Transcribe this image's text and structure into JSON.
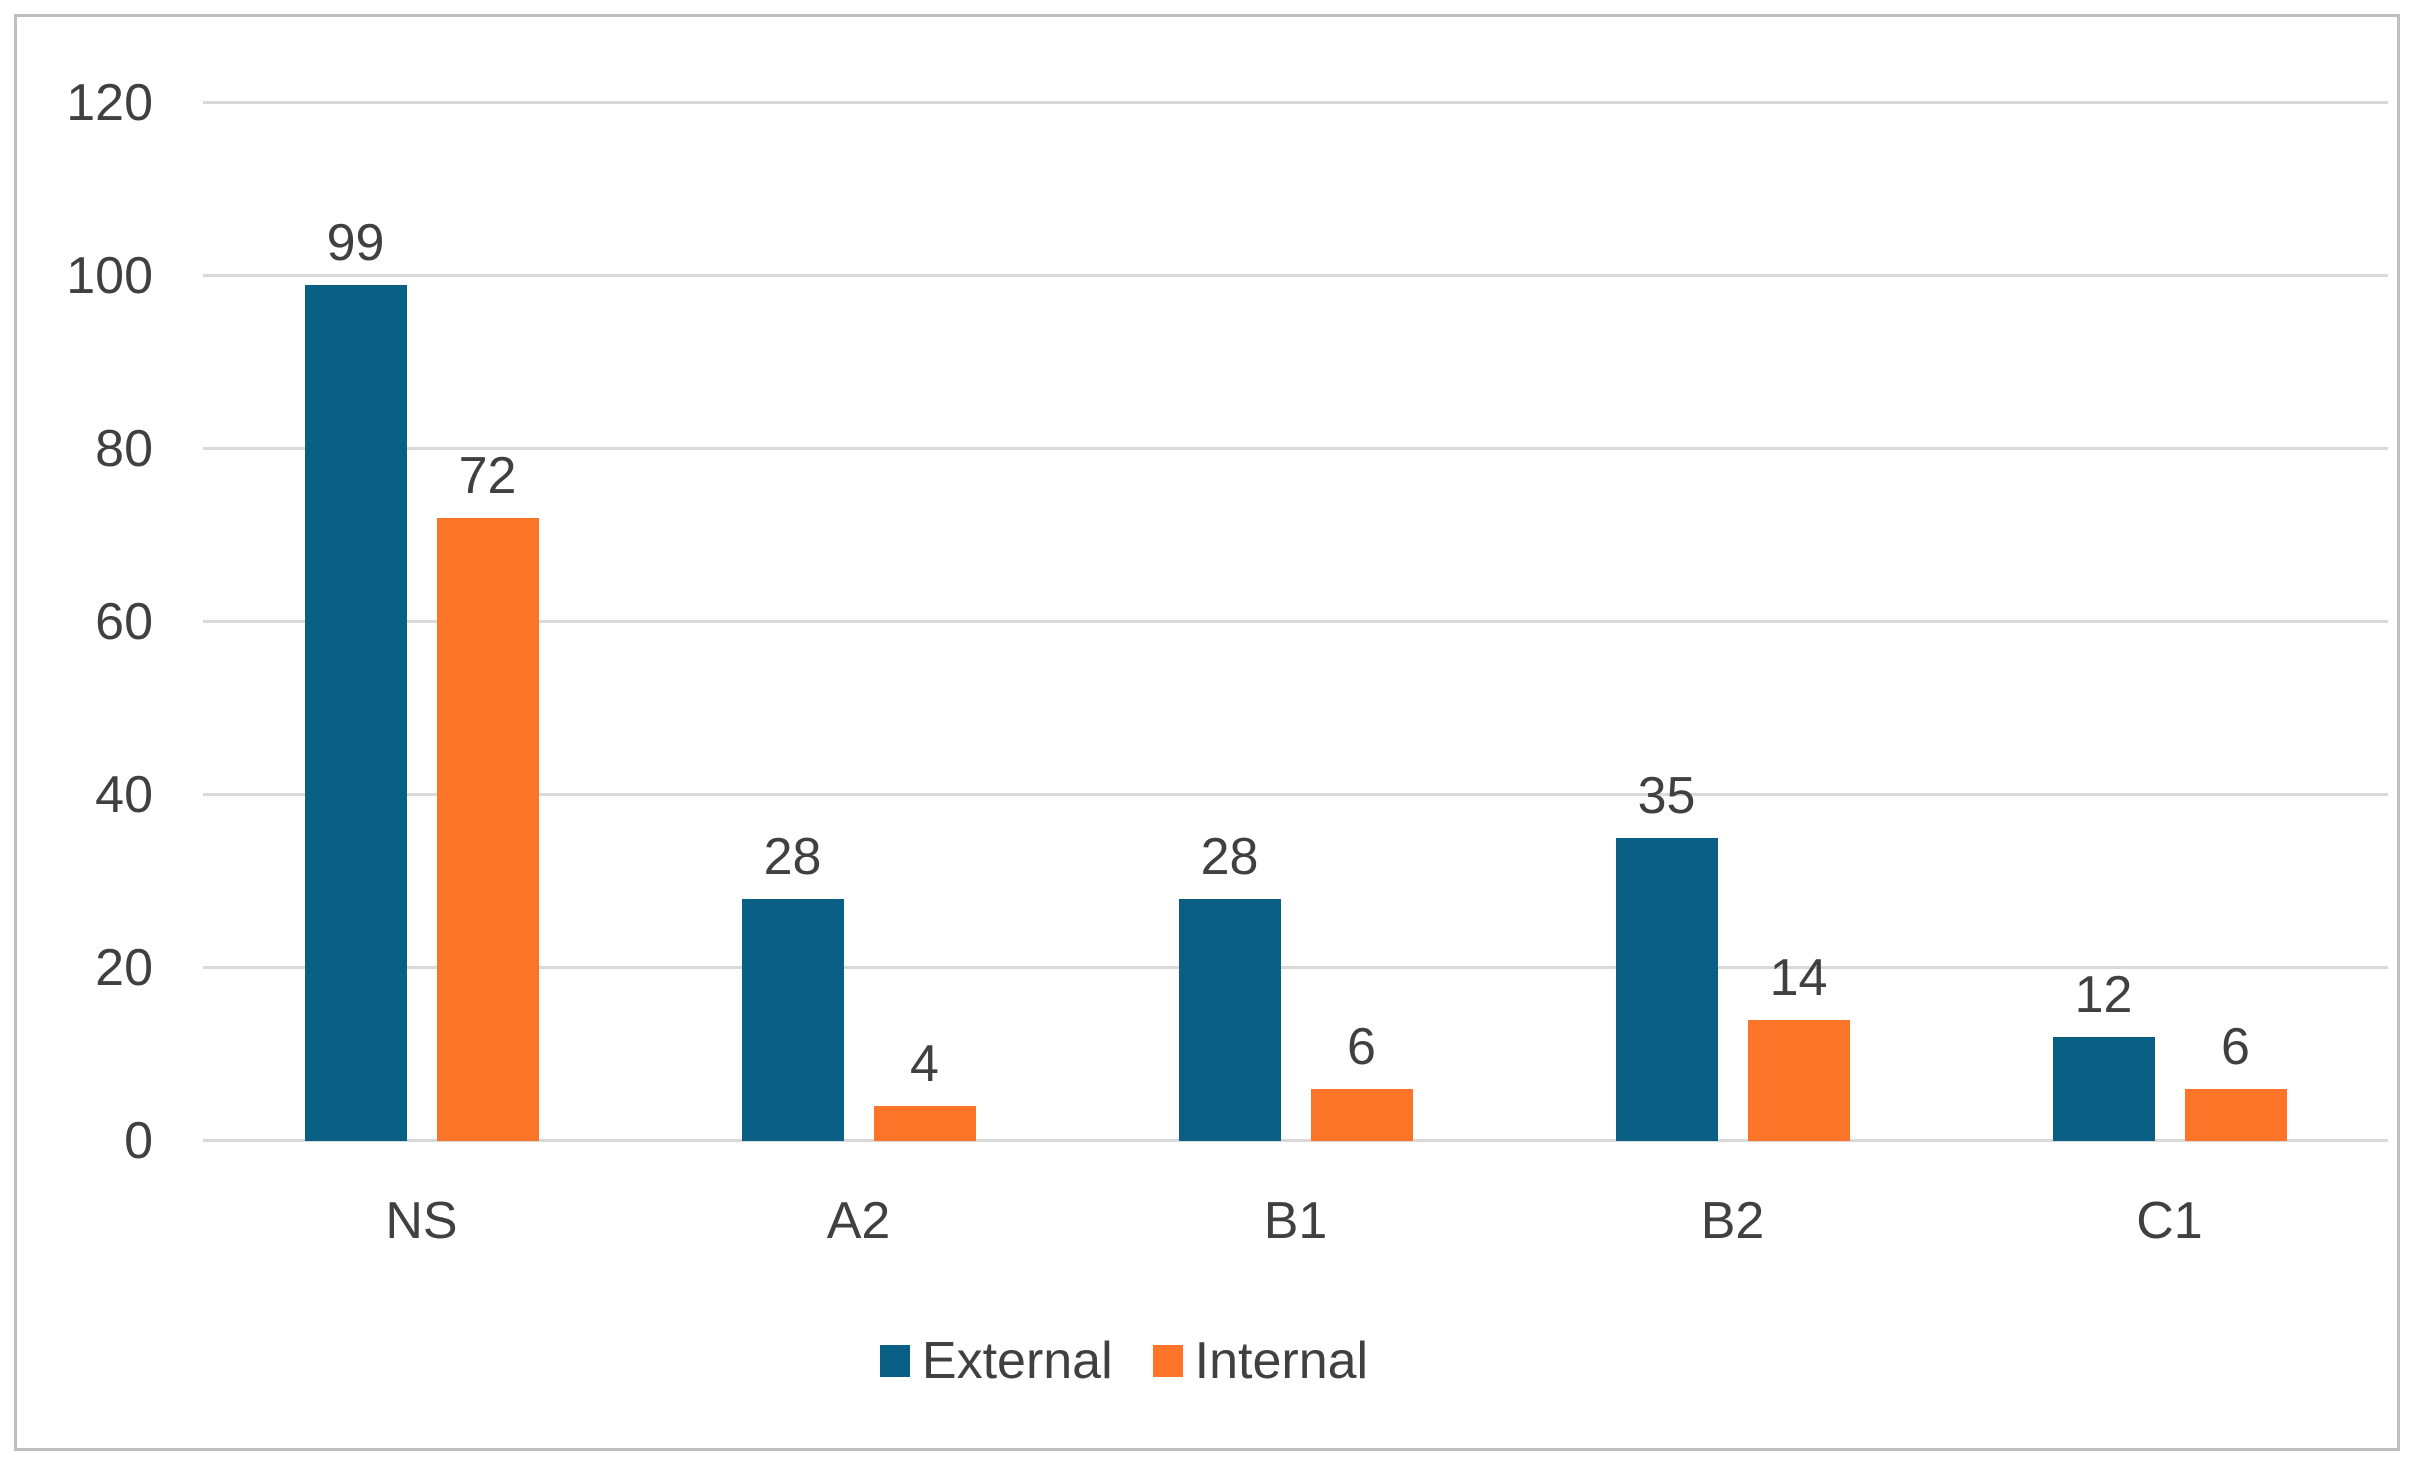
{
  "chart_data": {
    "type": "bar",
    "categories": [
      "NS",
      "A2",
      "B1",
      "B2",
      "C1"
    ],
    "series": [
      {
        "name": "External",
        "color": "#0A5F84",
        "values": [
          99,
          28,
          28,
          35,
          12
        ]
      },
      {
        "name": "Internal",
        "color": "#FB7428",
        "values": [
          72,
          4,
          6,
          14,
          6
        ]
      }
    ],
    "title": "",
    "xlabel": "",
    "ylabel": "",
    "ylim": [
      0,
      120
    ],
    "yticks": [
      0,
      20,
      40,
      60,
      80,
      100,
      120
    ],
    "grid": true,
    "legend_position": "bottom",
    "data_labels": true
  },
  "colors": {
    "grid": "#D9D9D9",
    "frame_border": "#BFBFBF",
    "axis_text": "#404040",
    "background": "#FFFFFF"
  }
}
